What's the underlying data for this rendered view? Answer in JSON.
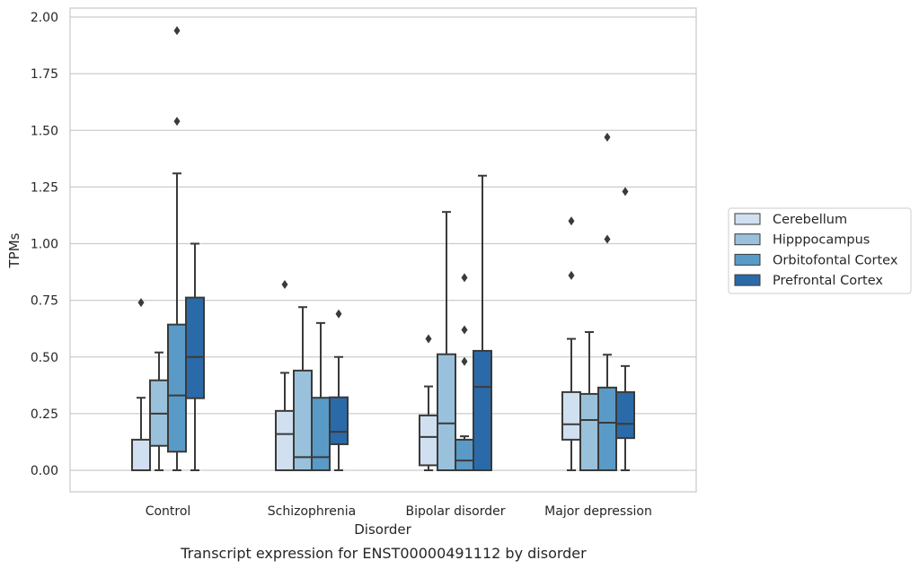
{
  "chart_data": {
    "type": "box",
    "title": "",
    "caption": "Transcript expression for ENST00000491112 by disorder",
    "xlabel": "Disorder",
    "ylabel": "TPMs",
    "ylim": [
      -0.095,
      2.04
    ],
    "yticks": [
      0.0,
      0.25,
      0.5,
      0.75,
      1.0,
      1.25,
      1.5,
      1.75,
      2.0
    ],
    "ytick_labels": [
      "0.00",
      "0.25",
      "0.50",
      "0.75",
      "1.00",
      "1.25",
      "1.50",
      "1.75",
      "2.00"
    ],
    "grid": "horizontal",
    "legend_position": "center-right, outside plot",
    "categories": [
      "Control",
      "Schizophrenia",
      "Bipolar disorder",
      "Major depression"
    ],
    "series": [
      {
        "name": "Cerebellum",
        "color": "#d0e0f0",
        "boxes": [
          {
            "whisker_low": 0.0,
            "q1": 0.0,
            "median": 0.0,
            "q3": 0.135,
            "whisker_high": 0.32,
            "outliers": [
              0.74
            ]
          },
          {
            "whisker_low": 0.0,
            "q1": 0.0,
            "median": 0.16,
            "q3": 0.262,
            "whisker_high": 0.43,
            "outliers": [
              0.82
            ]
          },
          {
            "whisker_low": 0.0,
            "q1": 0.022,
            "median": 0.147,
            "q3": 0.242,
            "whisker_high": 0.37,
            "outliers": [
              0.58
            ]
          },
          {
            "whisker_low": 0.0,
            "q1": 0.135,
            "median": 0.203,
            "q3": 0.345,
            "whisker_high": 0.58,
            "outliers": [
              0.86,
              1.1
            ]
          }
        ]
      },
      {
        "name": "Hipppocampus",
        "color": "#9ac1db",
        "boxes": [
          {
            "whisker_low": 0.0,
            "q1": 0.108,
            "median": 0.25,
            "q3": 0.397,
            "whisker_high": 0.52,
            "outliers": []
          },
          {
            "whisker_low": 0.0,
            "q1": 0.0,
            "median": 0.058,
            "q3": 0.44,
            "whisker_high": 0.72,
            "outliers": []
          },
          {
            "whisker_low": 0.0,
            "q1": 0.0,
            "median": 0.207,
            "q3": 0.512,
            "whisker_high": 1.14,
            "outliers": []
          },
          {
            "whisker_low": 0.0,
            "q1": 0.0,
            "median": 0.222,
            "q3": 0.337,
            "whisker_high": 0.61,
            "outliers": []
          }
        ]
      },
      {
        "name": "Orbitofontal Cortex",
        "color": "#5a9ac6",
        "boxes": [
          {
            "whisker_low": 0.0,
            "q1": 0.082,
            "median": 0.33,
            "q3": 0.643,
            "whisker_high": 1.31,
            "outliers": [
              1.54,
              1.94
            ]
          },
          {
            "whisker_low": 0.0,
            "q1": 0.0,
            "median": 0.058,
            "q3": 0.32,
            "whisker_high": 0.65,
            "outliers": []
          },
          {
            "whisker_low": 0.0,
            "q1": 0.0,
            "median": 0.043,
            "q3": 0.135,
            "whisker_high": 0.15,
            "outliers": [
              0.48,
              0.62,
              0.85
            ]
          },
          {
            "whisker_low": 0.0,
            "q1": 0.0,
            "median": 0.21,
            "q3": 0.365,
            "whisker_high": 0.51,
            "outliers": [
              1.02,
              1.47
            ]
          }
        ]
      },
      {
        "name": "Prefrontal Cortex",
        "color": "#2b6aa8",
        "boxes": [
          {
            "whisker_low": 0.0,
            "q1": 0.318,
            "median": 0.5,
            "q3": 0.762,
            "whisker_high": 1.0,
            "outliers": []
          },
          {
            "whisker_low": 0.0,
            "q1": 0.115,
            "median": 0.17,
            "q3": 0.322,
            "whisker_high": 0.5,
            "outliers": [
              0.69
            ]
          },
          {
            "whisker_low": 0.0,
            "q1": 0.0,
            "median": 0.368,
            "q3": 0.527,
            "whisker_high": 1.3,
            "outliers": []
          },
          {
            "whisker_low": 0.0,
            "q1": 0.142,
            "median": 0.205,
            "q3": 0.345,
            "whisker_high": 0.46,
            "outliers": [
              1.23
            ]
          }
        ]
      }
    ]
  }
}
